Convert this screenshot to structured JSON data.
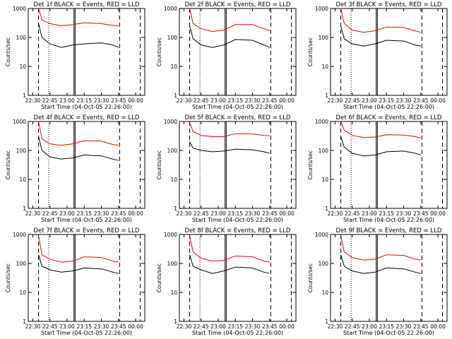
{
  "x_tick_labels": [
    "22:30",
    "22:45",
    "23:00",
    "23:15",
    "23:30",
    "23:45",
    "00:00"
  ],
  "y_tick_labels": [
    "1",
    "10",
    "100",
    "1000"
  ],
  "x_axis_label": "Start Time (04-Oct-05 22:26:00)",
  "y_axis_label": "Counts/sec",
  "colors": {
    "events": "#000000",
    "lld": "#ff0000",
    "axes": "#000000"
  },
  "chart_data": [
    {
      "type": "line",
      "title": "Det 1f BLACK = Events, RED = LLD",
      "ylim": [
        1,
        1000
      ],
      "ylog": true,
      "series": [
        {
          "name": "BLACK = Events",
          "x": [
            "22:35",
            "22:38",
            "22:45",
            "22:55",
            "23:05",
            "23:15",
            "23:30",
            "23:40",
            "23:45"
          ],
          "y": [
            300,
            100,
            60,
            45,
            55,
            60,
            65,
            55,
            45
          ]
        },
        {
          "name": "RED = LLD",
          "x": [
            "22:35",
            "22:38",
            "22:45",
            "22:55",
            "23:05",
            "23:15",
            "23:30",
            "23:40",
            "23:45"
          ],
          "y": [
            1000,
            400,
            300,
            250,
            280,
            320,
            300,
            260,
            250
          ]
        }
      ]
    },
    {
      "type": "line",
      "title": "Det 2f BLACK = Events, RED = LLD",
      "ylim": [
        1,
        1000
      ],
      "ylog": true,
      "series": [
        {
          "name": "BLACK = Events",
          "x": [
            "22:35",
            "22:38",
            "22:45",
            "22:55",
            "23:05",
            "23:15",
            "23:30",
            "23:40",
            "23:45"
          ],
          "y": [
            250,
            90,
            55,
            45,
            55,
            85,
            80,
            55,
            45
          ]
        },
        {
          "name": "RED = LLD",
          "x": [
            "22:35",
            "22:38",
            "22:45",
            "22:55",
            "23:05",
            "23:15",
            "23:30",
            "23:40",
            "23:45"
          ],
          "y": [
            1000,
            300,
            200,
            160,
            180,
            280,
            280,
            200,
            170
          ]
        }
      ]
    },
    {
      "type": "line",
      "title": "Det 3f BLACK = Events, RED = LLD",
      "ylim": [
        1,
        1000
      ],
      "ylog": true,
      "series": [
        {
          "name": "BLACK = Events",
          "x": [
            "22:35",
            "22:38",
            "22:45",
            "22:55",
            "23:05",
            "23:15",
            "23:30",
            "23:40",
            "23:45"
          ],
          "y": [
            250,
            90,
            60,
            50,
            60,
            80,
            75,
            55,
            50
          ]
        },
        {
          "name": "RED = LLD",
          "x": [
            "22:35",
            "22:38",
            "22:45",
            "22:55",
            "23:05",
            "23:15",
            "23:30",
            "23:40",
            "23:45"
          ],
          "y": [
            1000,
            300,
            180,
            150,
            170,
            230,
            220,
            170,
            150
          ]
        }
      ]
    },
    {
      "type": "line",
      "title": "Det 4f BLACK = Events, RED = LLD",
      "ylim": [
        1,
        1000
      ],
      "ylog": true,
      "series": [
        {
          "name": "BLACK = Events",
          "x": [
            "22:35",
            "22:38",
            "22:45",
            "22:55",
            "23:05",
            "23:15",
            "23:30",
            "23:40",
            "23:45"
          ],
          "y": [
            300,
            100,
            60,
            50,
            55,
            70,
            65,
            50,
            45
          ]
        },
        {
          "name": "RED = LLD",
          "x": [
            "22:35",
            "22:38",
            "22:45",
            "22:55",
            "23:05",
            "23:15",
            "23:30",
            "23:40",
            "23:45"
          ],
          "y": [
            1000,
            250,
            170,
            150,
            170,
            220,
            210,
            160,
            150
          ]
        }
      ]
    },
    {
      "type": "line",
      "title": "Det 5f BLACK = Events, RED = LLD",
      "ylim": [
        1,
        1000
      ],
      "ylog": true,
      "series": [
        {
          "name": "BLACK = Events",
          "x": [
            "22:35",
            "22:38",
            "22:45",
            "22:55",
            "23:05",
            "23:15",
            "23:30",
            "23:40",
            "23:45"
          ],
          "y": [
            200,
            120,
            100,
            90,
            95,
            110,
            105,
            90,
            80
          ]
        },
        {
          "name": "RED = LLD",
          "x": [
            "22:35",
            "22:38",
            "22:45",
            "22:55",
            "23:05",
            "23:15",
            "23:30",
            "23:40",
            "23:45"
          ],
          "y": [
            900,
            450,
            330,
            300,
            300,
            380,
            370,
            330,
            320
          ]
        }
      ]
    },
    {
      "type": "line",
      "title": "Det 6f BLACK = Events, RED = LLD",
      "ylim": [
        1,
        1000
      ],
      "ylog": true,
      "series": [
        {
          "name": "BLACK = Events",
          "x": [
            "22:35",
            "22:38",
            "22:45",
            "22:55",
            "23:05",
            "23:15",
            "23:30",
            "23:40",
            "23:45"
          ],
          "y": [
            300,
            130,
            80,
            65,
            70,
            90,
            95,
            80,
            70
          ]
        },
        {
          "name": "RED = LLD",
          "x": [
            "22:35",
            "22:38",
            "22:45",
            "22:55",
            "23:05",
            "23:15",
            "23:30",
            "23:40",
            "23:45"
          ],
          "y": [
            1000,
            500,
            330,
            280,
            290,
            350,
            340,
            300,
            270
          ]
        }
      ]
    },
    {
      "type": "line",
      "title": "Det 7f BLACK = Events, RED = LLD",
      "ylim": [
        1,
        1000
      ],
      "ylog": true,
      "series": [
        {
          "name": "BLACK = Events",
          "x": [
            "22:35",
            "22:38",
            "22:45",
            "22:55",
            "23:05",
            "23:15",
            "23:30",
            "23:40",
            "23:45"
          ],
          "y": [
            200,
            80,
            60,
            50,
            55,
            70,
            65,
            50,
            45
          ]
        },
        {
          "name": "RED = LLD",
          "x": [
            "22:35",
            "22:38",
            "22:45",
            "22:55",
            "23:05",
            "23:15",
            "23:30",
            "23:40",
            "23:45"
          ],
          "y": [
            900,
            200,
            140,
            110,
            120,
            170,
            160,
            120,
            110
          ]
        }
      ]
    },
    {
      "type": "line",
      "title": "Det 8f BLACK = Events, RED = LLD",
      "ylim": [
        1,
        1000
      ],
      "ylog": true,
      "series": [
        {
          "name": "BLACK = Events",
          "x": [
            "22:35",
            "22:38",
            "22:45",
            "22:55",
            "23:05",
            "23:15",
            "23:30",
            "23:40",
            "23:45"
          ],
          "y": [
            200,
            80,
            60,
            45,
            55,
            75,
            70,
            50,
            45
          ]
        },
        {
          "name": "RED = LLD",
          "x": [
            "22:35",
            "22:38",
            "22:45",
            "22:55",
            "23:05",
            "23:15",
            "23:30",
            "23:40",
            "23:45"
          ],
          "y": [
            900,
            250,
            150,
            120,
            130,
            180,
            170,
            120,
            110
          ]
        }
      ]
    },
    {
      "type": "line",
      "title": "Det 9f BLACK = Events, RED = LLD",
      "ylim": [
        1,
        1000
      ],
      "ylog": true,
      "series": [
        {
          "name": "BLACK = Events",
          "x": [
            "22:35",
            "22:38",
            "22:45",
            "22:55",
            "23:05",
            "23:15",
            "23:30",
            "23:40",
            "23:45"
          ],
          "y": [
            200,
            80,
            55,
            45,
            50,
            70,
            65,
            50,
            45
          ]
        },
        {
          "name": "RED = LLD",
          "x": [
            "22:35",
            "22:38",
            "22:45",
            "22:55",
            "23:05",
            "23:15",
            "23:30",
            "23:40",
            "23:45"
          ],
          "y": [
            900,
            250,
            160,
            130,
            140,
            200,
            190,
            140,
            130
          ]
        }
      ]
    }
  ]
}
